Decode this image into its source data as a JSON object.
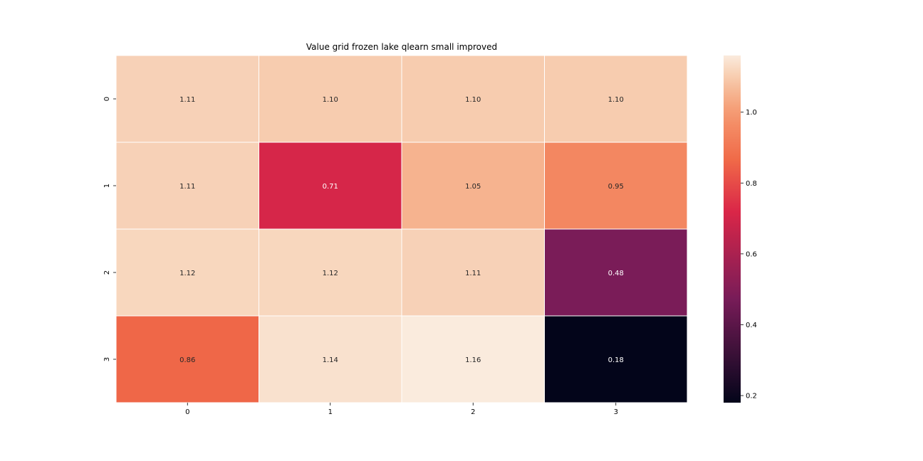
{
  "chart_data": {
    "type": "heatmap",
    "title": "Value grid frozen lake qlearn small improved",
    "xlabel": "",
    "ylabel": "",
    "x_categories": [
      "0",
      "1",
      "2",
      "3"
    ],
    "y_categories": [
      "0",
      "1",
      "2",
      "3"
    ],
    "values": [
      [
        1.11,
        1.1,
        1.1,
        1.1
      ],
      [
        1.11,
        0.71,
        1.05,
        0.95
      ],
      [
        1.12,
        1.12,
        1.11,
        0.48
      ],
      [
        0.86,
        1.14,
        1.16,
        0.18
      ]
    ],
    "value_labels": [
      [
        "1.11",
        "1.10",
        "1.10",
        "1.10"
      ],
      [
        "1.11",
        "0.71",
        "1.05",
        "0.95"
      ],
      [
        "1.12",
        "1.12",
        "1.11",
        "0.48"
      ],
      [
        "0.86",
        "1.14",
        "1.16",
        "0.18"
      ]
    ],
    "colorbar": {
      "range": [
        0.18,
        1.16
      ],
      "ticks": [
        0.2,
        0.4,
        0.6,
        0.8,
        1.0
      ],
      "tick_labels": [
        "0.2",
        "0.4",
        "0.6",
        "0.8",
        "1.0"
      ]
    },
    "colormap": "rocket",
    "grid": false
  }
}
